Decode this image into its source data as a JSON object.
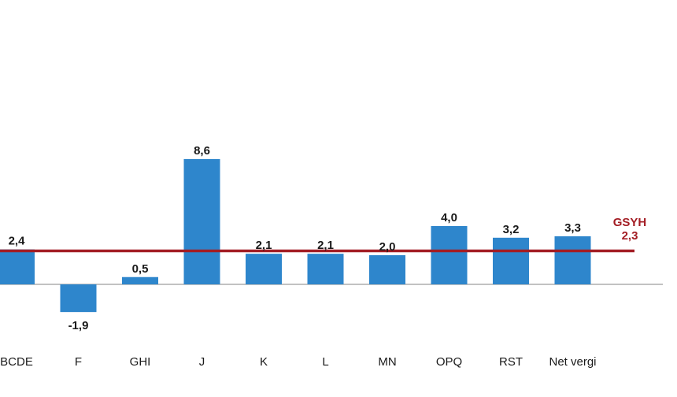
{
  "chart_data": {
    "type": "bar",
    "categories": [
      "BCDE",
      "F",
      "GHI",
      "J",
      "K",
      "L",
      "MN",
      "OPQ",
      "RST",
      "Net vergi"
    ],
    "values": [
      2.4,
      -1.9,
      0.5,
      8.6,
      2.1,
      2.1,
      2.0,
      4.0,
      3.2,
      3.3
    ],
    "value_labels": [
      "2,4",
      "-1,9",
      "0,5",
      "8,6",
      "2,1",
      "2,1",
      "2,0",
      "4,0",
      "3,2",
      "3,3"
    ],
    "reference_line": {
      "label": "GSYH",
      "value": 2.3,
      "value_label": "2,3"
    },
    "title": "",
    "xlabel": "",
    "ylabel": "",
    "grid": false,
    "legend": "none",
    "colors": {
      "bar": "#2e86cc",
      "reference": "#a31d24",
      "axis": "#9e9e9e"
    }
  }
}
